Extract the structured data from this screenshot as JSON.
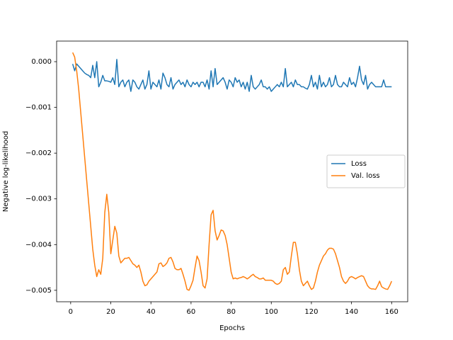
{
  "chart_data": {
    "type": "line",
    "xlabel": "Epochs",
    "ylabel": "Negative log-likelihood",
    "x": [
      1,
      2,
      3,
      4,
      5,
      6,
      7,
      8,
      9,
      10,
      11,
      12,
      13,
      14,
      15,
      16,
      17,
      18,
      19,
      20,
      21,
      22,
      23,
      24,
      25,
      26,
      27,
      28,
      29,
      30,
      31,
      32,
      33,
      34,
      35,
      36,
      37,
      38,
      39,
      40,
      41,
      42,
      43,
      44,
      45,
      46,
      47,
      48,
      49,
      50,
      51,
      52,
      53,
      54,
      55,
      56,
      57,
      58,
      59,
      60,
      61,
      62,
      63,
      64,
      65,
      66,
      67,
      68,
      69,
      70,
      71,
      72,
      73,
      74,
      75,
      76,
      77,
      78,
      79,
      80,
      81,
      82,
      83,
      84,
      85,
      86,
      87,
      88,
      89,
      90,
      91,
      92,
      93,
      94,
      95,
      96,
      97,
      98,
      99,
      100,
      101,
      102,
      103,
      104,
      105,
      106,
      107,
      108,
      109,
      110,
      111,
      112,
      113,
      114,
      115,
      116,
      117,
      118,
      119,
      120,
      121,
      122,
      123,
      124,
      125,
      126,
      127,
      128,
      129,
      130,
      131,
      132,
      133,
      134,
      135,
      136,
      137,
      138,
      139,
      140,
      141,
      142,
      143,
      144,
      145,
      146,
      147,
      148,
      149,
      150,
      151,
      152,
      153,
      154,
      155,
      156,
      157,
      158,
      159,
      160
    ],
    "series": [
      {
        "name": "Loss",
        "color": "#1f77b4",
        "values": [
          -5e-05,
          -0.0002,
          -5e-05,
          -0.0001,
          -0.00015,
          -0.0002,
          -0.00025,
          -0.00028,
          -0.0003,
          -0.00035,
          -8e-05,
          -0.00035,
          0.0,
          -0.00055,
          -0.00045,
          -0.0003,
          -0.00042,
          -0.00042,
          -0.00043,
          -0.00045,
          -0.00035,
          -0.0005,
          5e-05,
          -0.00055,
          -0.00045,
          -0.0004,
          -0.00055,
          -0.00045,
          -0.0004,
          -0.00065,
          -0.0004,
          -0.00045,
          -0.00055,
          -0.0006,
          -0.0005,
          -0.0004,
          -0.0006,
          -0.0005,
          -0.0002,
          -0.0006,
          -0.00045,
          -0.0005,
          -0.00055,
          -0.0004,
          -0.0006,
          -0.00025,
          -0.00035,
          -0.0005,
          -0.00055,
          -0.00035,
          -0.0006,
          -0.0005,
          -0.00045,
          -0.0004,
          -0.0005,
          -0.00045,
          -0.00055,
          -0.0004,
          -0.0005,
          -0.00055,
          -0.00045,
          -0.0005,
          -0.00045,
          -0.00055,
          -0.00045,
          -0.00045,
          -0.00055,
          -0.0004,
          -0.0006,
          -0.0002,
          -0.00055,
          -0.00015,
          -0.0005,
          -0.00045,
          -0.0004,
          -0.00035,
          -0.00045,
          -0.0006,
          -0.0004,
          -0.00045,
          -0.00055,
          -0.00035,
          -0.00045,
          -0.0004,
          -0.00055,
          -0.00045,
          -0.0006,
          -0.00045,
          -0.00065,
          -0.0003,
          -0.00055,
          -0.0006,
          -0.00055,
          -0.0005,
          -0.0004,
          -0.00055,
          -0.00055,
          -0.0006,
          -0.00055,
          -0.00065,
          -0.0006,
          -0.00055,
          -0.0005,
          -0.00055,
          -0.00045,
          -0.00055,
          -0.00015,
          -0.00055,
          -0.0005,
          -0.00045,
          -0.00055,
          -0.0004,
          -0.0005,
          -0.0005,
          -0.00055,
          -0.00055,
          -0.00058,
          -0.0006,
          -0.0005,
          -0.0003,
          -0.00055,
          -0.00045,
          -0.0006,
          -0.0003,
          -0.00055,
          -0.00045,
          -0.00055,
          -0.0005,
          -0.00035,
          -0.00055,
          -0.0005,
          -0.0003,
          -0.0005,
          -0.00055,
          -0.00055,
          -0.00045,
          -0.0005,
          -0.00055,
          -0.00035,
          -0.0005,
          -0.00045,
          -0.00055,
          -0.00035,
          -0.0001,
          -0.0004,
          -0.0005,
          -0.0003,
          -0.0006,
          -0.0005,
          -0.00045,
          -0.0005,
          -0.00055,
          -0.00055,
          -0.00055,
          -0.00055,
          -0.0004,
          -0.00055,
          -0.00055,
          -0.00055,
          -0.00055
        ]
      },
      {
        "name": "Val. loss",
        "color": "#ff7f0e",
        "values": [
          0.0002,
          0.0001,
          -0.0002,
          -0.0006,
          -0.0011,
          -0.0016,
          -0.0021,
          -0.0026,
          -0.0031,
          -0.0036,
          -0.0041,
          -0.00445,
          -0.0047,
          -0.00455,
          -0.00465,
          -0.0043,
          -0.0033,
          -0.0029,
          -0.0033,
          -0.0042,
          -0.0039,
          -0.0036,
          -0.00375,
          -0.00425,
          -0.0044,
          -0.00435,
          -0.0043,
          -0.0043,
          -0.00428,
          -0.00435,
          -0.00442,
          -0.00445,
          -0.0045,
          -0.00445,
          -0.0046,
          -0.0048,
          -0.0049,
          -0.00488,
          -0.0048,
          -0.00475,
          -0.0047,
          -0.00465,
          -0.0046,
          -0.00442,
          -0.0044,
          -0.00448,
          -0.00445,
          -0.0044,
          -0.0043,
          -0.00428,
          -0.00438,
          -0.00452,
          -0.00455,
          -0.00455,
          -0.00452,
          -0.00465,
          -0.0048,
          -0.00498,
          -0.005,
          -0.0049,
          -0.00478,
          -0.0045,
          -0.00425,
          -0.00435,
          -0.0046,
          -0.0049,
          -0.00495,
          -0.00475,
          -0.004,
          -0.00335,
          -0.00325,
          -0.0037,
          -0.0039,
          -0.0038,
          -0.00368,
          -0.0037,
          -0.0038,
          -0.004,
          -0.0043,
          -0.0046,
          -0.00475,
          -0.00473,
          -0.00475,
          -0.00473,
          -0.00472,
          -0.0047,
          -0.00472,
          -0.00475,
          -0.00472,
          -0.00468,
          -0.00465,
          -0.0047,
          -0.00472,
          -0.00475,
          -0.00475,
          -0.00473,
          -0.00478,
          -0.00478,
          -0.00478,
          -0.00478,
          -0.0048,
          -0.00485,
          -0.00487,
          -0.00485,
          -0.0048,
          -0.00455,
          -0.0045,
          -0.00465,
          -0.0046,
          -0.00425,
          -0.00395,
          -0.00395,
          -0.0042,
          -0.00455,
          -0.0048,
          -0.0049,
          -0.00485,
          -0.0048,
          -0.0049,
          -0.00498,
          -0.00495,
          -0.0048,
          -0.0046,
          -0.00445,
          -0.00435,
          -0.00425,
          -0.0042,
          -0.00412,
          -0.00408,
          -0.00408,
          -0.0041,
          -0.0042,
          -0.00435,
          -0.0045,
          -0.0047,
          -0.0048,
          -0.00485,
          -0.0048,
          -0.00472,
          -0.0047,
          -0.00472,
          -0.00475,
          -0.00472,
          -0.0047,
          -0.00468,
          -0.0047,
          -0.0048,
          -0.0049,
          -0.00495,
          -0.00497,
          -0.00497,
          -0.00498,
          -0.0049,
          -0.0048,
          -0.00492,
          -0.00495,
          -0.00497,
          -0.00498,
          -0.0049,
          -0.0048
        ]
      }
    ],
    "xlim": [
      -7,
      168
    ],
    "xticks": [
      0,
      20,
      40,
      60,
      80,
      100,
      120,
      140,
      160
    ],
    "ylim": [
      -0.00525,
      0.00045
    ],
    "yticks": [
      {
        "value": 0,
        "label": "0.000"
      },
      {
        "value": -0.001,
        "label": "−0.001"
      },
      {
        "value": -0.002,
        "label": "−0.002"
      },
      {
        "value": -0.003,
        "label": "−0.003"
      },
      {
        "value": -0.004,
        "label": "−0.004"
      },
      {
        "value": -0.005,
        "label": "−0.005"
      }
    ],
    "grid": false,
    "legend": "center right"
  }
}
